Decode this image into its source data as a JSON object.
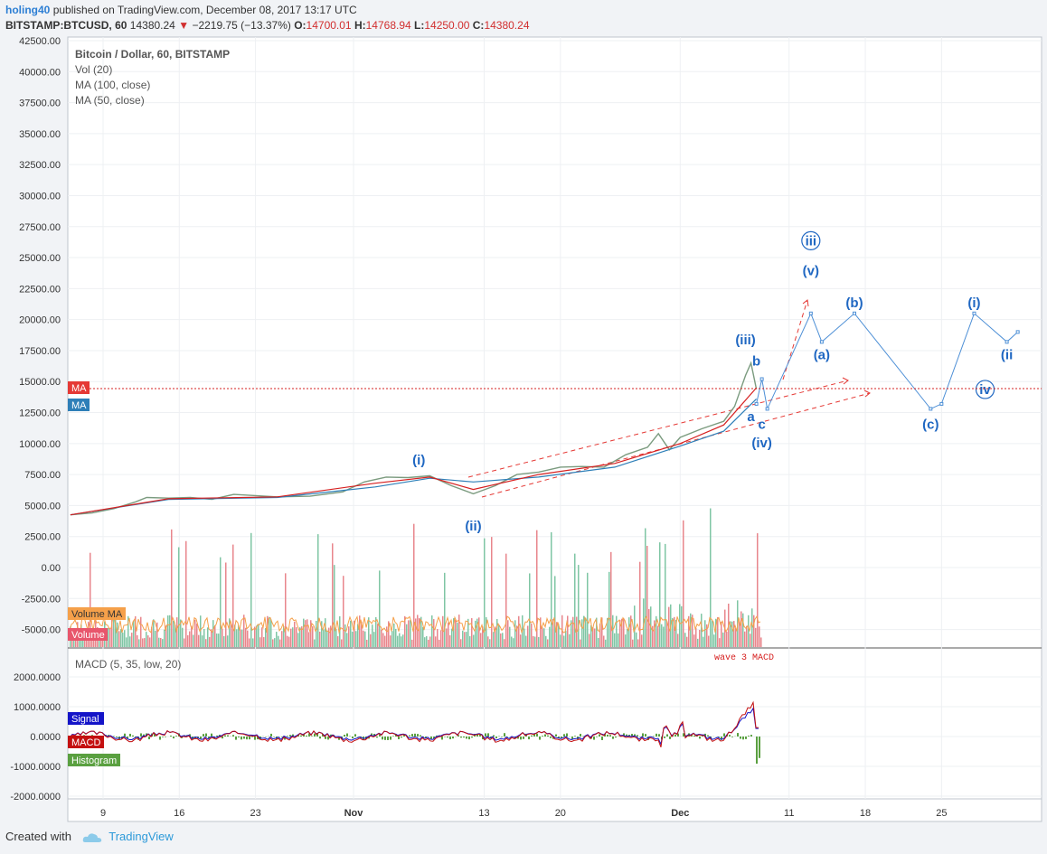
{
  "header": {
    "author": "holing40",
    "published_text": "published on TradingView.com, December 08, 2017 13:17 UTC",
    "symbol": "BITSTAMP:BTCUSD, 60",
    "last": "14380.24",
    "change": "−2219.75 (−13.37%)",
    "o_label": "O:",
    "o_value": "14700.01",
    "h_label": "H:",
    "h_value": "14768.94",
    "l_label": "L:",
    "l_value": "14250.00",
    "c_label": "C:",
    "c_value": "14380.24"
  },
  "legend": {
    "line1": "Bitcoin / Dollar, 60, BITSTAMP",
    "line2": "Vol (20)",
    "line3": "MA (100, close)",
    "line4": "MA (50, close)"
  },
  "tags": {
    "ma_red": "MA",
    "ma_blue": "MA",
    "volume_ma": "Volume MA",
    "volume": "Volume",
    "signal": "Signal",
    "macd": "MACD",
    "histogram": "Histogram"
  },
  "macd_title": "MACD (5, 35, low, 20)",
  "macd_note": "wave 3 MACD",
  "footer": {
    "created_with": "Created with",
    "brand": "TradingView"
  },
  "colors": {
    "price_line": "#7b9b7f",
    "ma100": "#2e7fb8",
    "ma50": "#d62020",
    "wave_label": "#1f67c2",
    "projection": "#4d8fd6",
    "trend_dashed": "#e53935",
    "volume_up": "#7fc6a4",
    "volume_down": "#e8868c",
    "volume_ma": "#f5a04a",
    "macd_line": "#c41010",
    "signal_line": "#1414c8",
    "histogram": "#5aa040"
  },
  "chart_data": {
    "type": "line",
    "price_axis_ticks": [
      "42500.00",
      "40000.00",
      "37500.00",
      "35000.00",
      "32500.00",
      "30000.00",
      "27500.00",
      "25000.00",
      "22500.00",
      "20000.00",
      "17500.00",
      "15000.00",
      "12500.00",
      "10000.00",
      "7500.00",
      "5000.00",
      "2500.00",
      "0.00",
      "-2500.00",
      "-5000.00"
    ],
    "macd_axis_ticks": [
      "2000.0000",
      "1000.0000",
      "0.0000",
      "-1000.0000",
      "-2000.0000"
    ],
    "x_ticks": [
      "9",
      "16",
      "23",
      "Nov",
      "13",
      "20",
      "Dec",
      "11",
      "18",
      "25"
    ],
    "ylim": [
      -6000,
      42500
    ],
    "price_series": {
      "name": "BTCUSD",
      "points": [
        [
          "Oct 6",
          4250
        ],
        [
          "Oct 8",
          4400
        ],
        [
          "Oct 10",
          4750
        ],
        [
          "Oct 12",
          5300
        ],
        [
          "Oct 13",
          5650
        ],
        [
          "Oct 15",
          5600
        ],
        [
          "Oct 17",
          5650
        ],
        [
          "Oct 19",
          5500
        ],
        [
          "Oct 21",
          5900
        ],
        [
          "Oct 23",
          5800
        ],
        [
          "Oct 25",
          5700
        ],
        [
          "Oct 28",
          5750
        ],
        [
          "Oct 31",
          6100
        ],
        [
          "Nov 2",
          6900
        ],
        [
          "Nov 4",
          7300
        ],
        [
          "Nov 6",
          7250
        ],
        [
          "Nov 8",
          7400
        ],
        [
          "Nov 10",
          6600
        ],
        [
          "Nov 12",
          5950
        ],
        [
          "Nov 14",
          6600
        ],
        [
          "Nov 16",
          7500
        ],
        [
          "Nov 18",
          7700
        ],
        [
          "Nov 20",
          8100
        ],
        [
          "Nov 22",
          8150
        ],
        [
          "Nov 24",
          8100
        ],
        [
          "Nov 26",
          9100
        ],
        [
          "Nov 28",
          9700
        ],
        [
          "Nov 29",
          10800
        ],
        [
          "Nov 30",
          9500
        ],
        [
          "Dec 1",
          10500
        ],
        [
          "Dec 3",
          11200
        ],
        [
          "Dec 5",
          11800
        ],
        [
          "Dec 6",
          13000
        ],
        [
          "Dec 7",
          15500
        ],
        [
          "Dec 7.5",
          16500
        ],
        [
          "Dec 8",
          14380
        ]
      ]
    },
    "ma100_points": [
      [
        "Oct 6",
        4250
      ],
      [
        "Oct 15",
        5500
      ],
      [
        "Oct 25",
        5650
      ],
      [
        "Nov 3",
        6500
      ],
      [
        "Nov 8",
        7200
      ],
      [
        "Nov 12",
        6900
      ],
      [
        "Nov 18",
        7300
      ],
      [
        "Nov 25",
        8100
      ],
      [
        "Dec 1",
        9800
      ],
      [
        "Dec 5",
        11000
      ],
      [
        "Dec 8",
        13600
      ]
    ],
    "ma50_points": [
      [
        "Oct 6",
        4250
      ],
      [
        "Oct 15",
        5550
      ],
      [
        "Oct 25",
        5700
      ],
      [
        "Nov 3",
        6800
      ],
      [
        "Nov 8",
        7300
      ],
      [
        "Nov 12",
        6300
      ],
      [
        "Nov 18",
        7500
      ],
      [
        "Nov 25",
        8400
      ],
      [
        "Dec 1",
        10000
      ],
      [
        "Dec 5",
        11500
      ],
      [
        "Dec 8",
        14500
      ]
    ],
    "current_price": 14380.24,
    "wave_labels": [
      {
        "label": "(i)",
        "date": "Nov 7",
        "price": 8300
      },
      {
        "label": "(ii)",
        "date": "Nov 12",
        "price": 3000
      },
      {
        "label": "(iii)",
        "date": "Dec 7",
        "price": 18000
      },
      {
        "label": "b",
        "date": "Dec 8",
        "price": 16300
      },
      {
        "label": "a",
        "date": "Dec 7.5",
        "price": 11800
      },
      {
        "label": "c",
        "date": "Dec 8.5",
        "price": 11200
      },
      {
        "label": "(iv)",
        "date": "Dec 8.5",
        "price": 9700
      },
      {
        "label": "iii",
        "date": "Dec 13",
        "price": 26000
      },
      {
        "label": "(v)",
        "date": "Dec 13",
        "price": 23600
      },
      {
        "label": "(b)",
        "date": "Dec 17",
        "price": 21000
      },
      {
        "label": "(a)",
        "date": "Dec 14",
        "price": 16800
      },
      {
        "label": "(c)",
        "date": "Dec 24",
        "price": 11200
      },
      {
        "label": "(i)",
        "date": "Dec 28",
        "price": 21000
      },
      {
        "label": "(ii",
        "date": "Dec 31",
        "price": 16800
      },
      {
        "label": "iv",
        "date": "Dec 29",
        "price": 14000
      }
    ],
    "projection_path": [
      [
        "Dec 8",
        13200
      ],
      [
        "Dec 8.5",
        15200
      ],
      [
        "Dec 9",
        12800
      ],
      [
        "Dec 13",
        20500
      ],
      [
        "Dec 14",
        18200
      ],
      [
        "Dec 17",
        20500
      ],
      [
        "Dec 24",
        12800
      ],
      [
        "Dec 25",
        13200
      ],
      [
        "Dec 28",
        20500
      ],
      [
        "Dec 31",
        18200
      ],
      [
        "Jan 1",
        19000
      ]
    ],
    "xlabel": "",
    "ylabel": ""
  }
}
